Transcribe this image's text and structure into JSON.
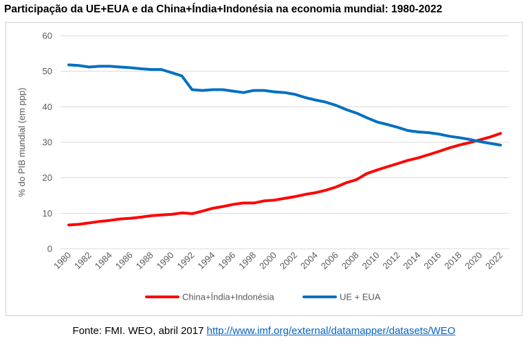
{
  "title": "Participação da UE+EUA e da China+Índia+Indonésia na economia mundial: 1980-2022",
  "source": {
    "prefix": "Fonte: FMI. WEO, abril 2017 ",
    "link_text": "http://www.imf.org/external/datamapper/datasets/WEO"
  },
  "chart_data": {
    "type": "line",
    "title": "",
    "xlabel": "",
    "ylabel": "% do PIB mundial (em ppp)",
    "ylim": [
      0,
      60
    ],
    "yticks": [
      0,
      10,
      20,
      30,
      40,
      50,
      60
    ],
    "grid": true,
    "legend_position": "bottom",
    "x": [
      1980,
      1981,
      1982,
      1983,
      1984,
      1985,
      1986,
      1987,
      1988,
      1989,
      1990,
      1991,
      1992,
      1993,
      1994,
      1995,
      1996,
      1997,
      1998,
      1999,
      2000,
      2001,
      2002,
      2003,
      2004,
      2005,
      2006,
      2007,
      2008,
      2009,
      2010,
      2011,
      2012,
      2013,
      2014,
      2015,
      2016,
      2017,
      2018,
      2019,
      2020,
      2021,
      2022
    ],
    "xtick_labels": [
      "1980",
      "1982",
      "1984",
      "1986",
      "1988",
      "1990",
      "1992",
      "1994",
      "1996",
      "1998",
      "2000",
      "2002",
      "2004",
      "2006",
      "2008",
      "2010",
      "2012",
      "2014",
      "2016",
      "2018",
      "2020",
      "2022"
    ],
    "series": [
      {
        "name": "China+Índia+Indonésia",
        "color": "#ff0000",
        "values": [
          6.7,
          6.9,
          7.3,
          7.7,
          8.0,
          8.4,
          8.6,
          8.9,
          9.3,
          9.5,
          9.7,
          10.1,
          9.9,
          10.6,
          11.4,
          11.9,
          12.5,
          12.9,
          12.9,
          13.5,
          13.7,
          14.2,
          14.7,
          15.3,
          15.8,
          16.5,
          17.4,
          18.6,
          19.5,
          21.2,
          22.2,
          23.1,
          24.0,
          24.9,
          25.6,
          26.5,
          27.4,
          28.4,
          29.2,
          29.9,
          30.7,
          31.5,
          32.5
        ]
      },
      {
        "name": "UE + EUA",
        "color": "#0070c0",
        "values": [
          51.8,
          51.6,
          51.2,
          51.4,
          51.4,
          51.2,
          51.0,
          50.7,
          50.5,
          50.5,
          49.6,
          48.7,
          44.8,
          44.6,
          44.8,
          44.8,
          44.4,
          44.0,
          44.6,
          44.6,
          44.2,
          44.0,
          43.5,
          42.6,
          41.9,
          41.3,
          40.4,
          39.2,
          38.2,
          36.9,
          35.7,
          35.0,
          34.2,
          33.3,
          32.9,
          32.7,
          32.3,
          31.7,
          31.3,
          30.8,
          30.2,
          29.7,
          29.2
        ]
      }
    ]
  }
}
